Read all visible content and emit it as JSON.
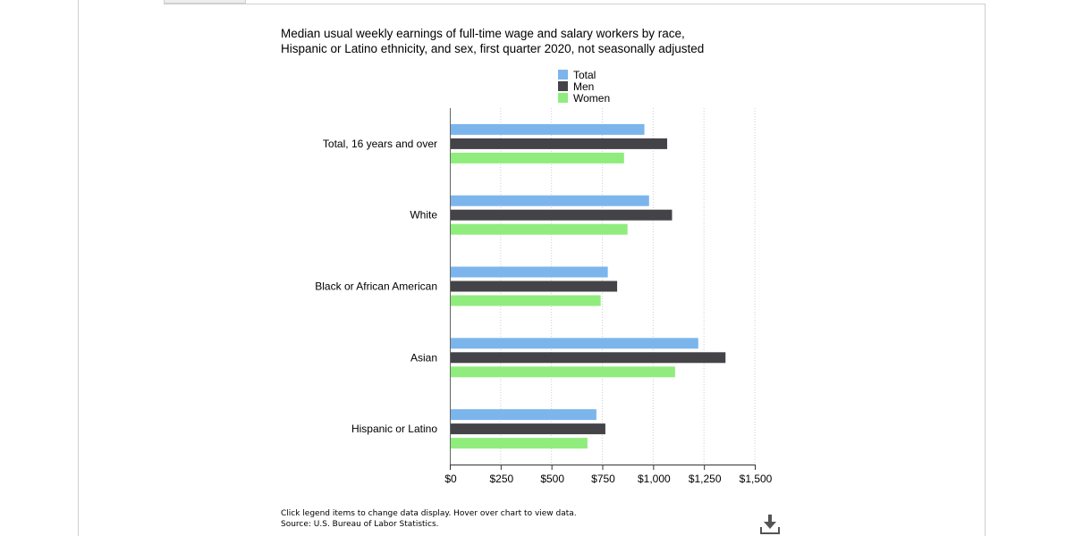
{
  "title_line1": "Median usual weekly earnings of full-time wage and salary workers by race,",
  "title_line2": "Hispanic or Latino ethnicity, and sex, first quarter 2020, not seasonally adjusted",
  "footnote_line1": "Click legend items to change data display. Hover over chart to view data.",
  "footnote_line2": "Source: U.S. Bureau of Labor Statistics.",
  "download_icon": "download-icon",
  "chart_data": {
    "type": "bar",
    "orientation": "horizontal",
    "title": "Median usual weekly earnings of full-time wage and salary workers by race, Hispanic or Latino ethnicity, and sex, first quarter 2020, not seasonally adjusted",
    "categories": [
      "Total, 16 years and over",
      "White",
      "Black or African American",
      "Asian",
      "Hispanic or Latino"
    ],
    "series": [
      {
        "name": "Total",
        "color": "#7cb5ec",
        "values": [
          957,
          980,
          777,
          1222,
          721
        ]
      },
      {
        "name": "Men",
        "color": "#434348",
        "values": [
          1069,
          1093,
          823,
          1356,
          765
        ]
      },
      {
        "name": "Women",
        "color": "#90ed7d",
        "values": [
          857,
          874,
          742,
          1108,
          677
        ]
      }
    ],
    "xlim": [
      0,
      1500
    ],
    "xticks": [
      0,
      250,
      500,
      750,
      1000,
      1250,
      1500
    ],
    "xtick_labels": [
      "$0",
      "$250",
      "$500",
      "$750",
      "$1,000",
      "$1,250",
      "$1,500"
    ],
    "grid": true,
    "legend_position": "top"
  }
}
